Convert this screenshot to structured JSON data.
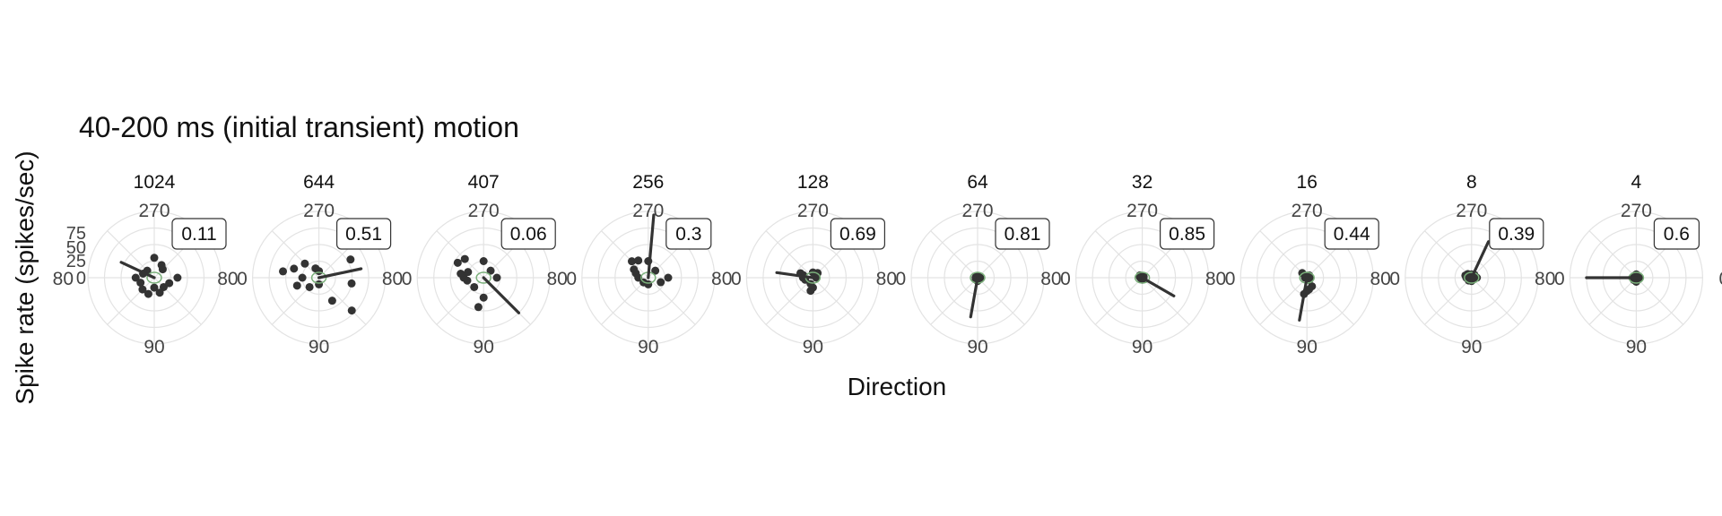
{
  "chart_data": {
    "type": "polar-scatter",
    "title": "40-200 ms (initial transient) motion",
    "xlabel": "Direction",
    "ylabel": "Spike rate (spikes/sec)",
    "theta_ticks": [
      "270",
      "0",
      "90",
      "80"
    ],
    "r_ticks": [
      "75",
      "50",
      "25",
      "0"
    ],
    "r_max": 100,
    "colors": {
      "points": "#333333",
      "grid": "#e3e3e3",
      "fit": "#7bb07b",
      "vector": "#333333"
    },
    "panels": [
      {
        "label": "1024",
        "value": "0.11",
        "points": [
          [
            0,
            35
          ],
          [
            45,
            20
          ],
          [
            90,
            15
          ],
          [
            135,
            25
          ],
          [
            180,
            28
          ],
          [
            225,
            15
          ],
          [
            270,
            30
          ],
          [
            315,
            18
          ],
          [
            20,
            24
          ],
          [
            300,
            22
          ],
          [
            160,
            22
          ],
          [
            200,
            18
          ],
          [
            110,
            26
          ],
          [
            70,
            24
          ]
        ],
        "vector": [
          205,
          55
        ]
      },
      {
        "label": "644",
        "value": "0.51",
        "points": [
          [
            180,
            25
          ],
          [
            200,
            40
          ],
          [
            160,
            35
          ],
          [
            135,
            20
          ],
          [
            225,
            30
          ],
          [
            250,
            15
          ],
          [
            270,
            10
          ],
          [
            90,
            10
          ],
          [
            60,
            40
          ],
          [
            45,
            70
          ],
          [
            330,
            55
          ],
          [
            10,
            50
          ],
          [
            190,
            55
          ]
        ],
        "vector": [
          348,
          65
        ]
      },
      {
        "label": "407",
        "value": "0.06",
        "points": [
          [
            225,
            40
          ],
          [
            210,
            45
          ],
          [
            180,
            30
          ],
          [
            135,
            20
          ],
          [
            270,
            25
          ],
          [
            90,
            30
          ],
          [
            100,
            45
          ],
          [
            0,
            20
          ],
          [
            315,
            15
          ],
          [
            200,
            25
          ],
          [
            190,
            35
          ],
          [
            170,
            25
          ]
        ],
        "vector": [
          45,
          75
        ]
      },
      {
        "label": "256",
        "value": "0.3",
        "points": [
          [
            225,
            35
          ],
          [
            200,
            20
          ],
          [
            180,
            15
          ],
          [
            135,
            10
          ],
          [
            270,
            25
          ],
          [
            90,
            10
          ],
          [
            0,
            30
          ],
          [
            20,
            20
          ],
          [
            315,
            15
          ],
          [
            240,
            30
          ],
          [
            210,
            25
          ]
        ],
        "vector": [
          275,
          95
        ]
      },
      {
        "label": "128",
        "value": "0.69",
        "points": [
          [
            180,
            15
          ],
          [
            195,
            15
          ],
          [
            165,
            12
          ],
          [
            100,
            20
          ],
          [
            90,
            15
          ],
          [
            0,
            5
          ],
          [
            270,
            8
          ],
          [
            315,
            10
          ],
          [
            200,
            20
          ],
          [
            110,
            10
          ]
        ],
        "vector": [
          188,
          55
        ]
      },
      {
        "label": "64",
        "value": "0.81",
        "points": [
          [
            90,
            5
          ],
          [
            180,
            3
          ],
          [
            0,
            4
          ],
          [
            270,
            2
          ],
          [
            45,
            3
          ],
          [
            135,
            4
          ],
          [
            225,
            3
          ],
          [
            315,
            2
          ]
        ],
        "vector": [
          100,
          60
        ]
      },
      {
        "label": "32",
        "value": "0.85",
        "points": [
          [
            225,
            5
          ],
          [
            200,
            4
          ],
          [
            180,
            3
          ],
          [
            270,
            2
          ],
          [
            315,
            3
          ],
          [
            0,
            2
          ],
          [
            90,
            3
          ],
          [
            135,
            2
          ]
        ],
        "vector": [
          30,
          55
        ]
      },
      {
        "label": "16",
        "value": "0.44",
        "points": [
          [
            225,
            10
          ],
          [
            60,
            15
          ],
          [
            90,
            20
          ],
          [
            100,
            25
          ],
          [
            80,
            18
          ],
          [
            0,
            4
          ],
          [
            180,
            3
          ],
          [
            270,
            3
          ],
          [
            315,
            5
          ],
          [
            45,
            5
          ]
        ],
        "vector": [
          100,
          65
        ]
      },
      {
        "label": "8",
        "value": "0.39",
        "points": [
          [
            180,
            8
          ],
          [
            200,
            10
          ],
          [
            225,
            8
          ],
          [
            270,
            5
          ],
          [
            315,
            6
          ],
          [
            0,
            8
          ],
          [
            90,
            5
          ],
          [
            135,
            6
          ],
          [
            160,
            4
          ]
        ],
        "vector": [
          295,
          60
        ]
      },
      {
        "label": "4",
        "value": "0.6",
        "points": [
          [
            0,
            5
          ],
          [
            45,
            4
          ],
          [
            90,
            6
          ],
          [
            135,
            5
          ],
          [
            180,
            6
          ],
          [
            225,
            4
          ],
          [
            270,
            5
          ],
          [
            315,
            4
          ]
        ],
        "vector": [
          180,
          75
        ]
      }
    ]
  }
}
